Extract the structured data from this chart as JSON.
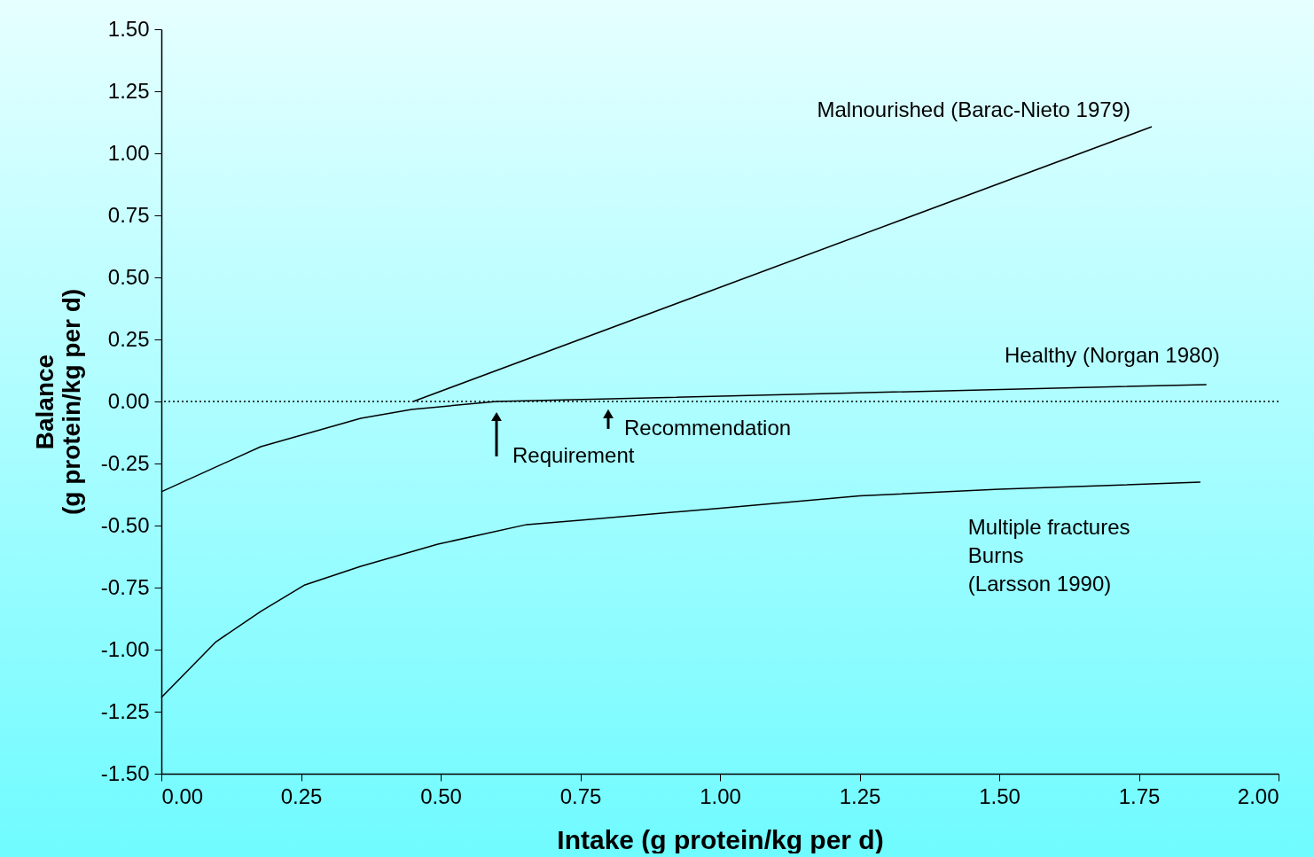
{
  "chart_data": {
    "type": "line",
    "xlabel": "Intake (g protein/kg per d)",
    "ylabel": "Balance\n(g protein/kg per d)",
    "xlim": [
      0,
      2
    ],
    "xticks": [
      {
        "value": 0,
        "label": "0.00"
      },
      {
        "value": 0.25,
        "label": "0.25"
      },
      {
        "value": 0.5,
        "label": "0.50"
      },
      {
        "value": 0.75,
        "label": "0.75"
      },
      {
        "value": 1,
        "label": "1.00"
      },
      {
        "value": 1.25,
        "label": "1.25"
      },
      {
        "value": 1.5,
        "label": "1.50"
      },
      {
        "value": 1.75,
        "label": "1.75"
      },
      {
        "value": 2,
        "label": "2.00"
      }
    ],
    "ylim": [
      -1.5,
      1.5
    ],
    "yticks": [
      {
        "value": -1.5,
        "label": "-1.50"
      },
      {
        "value": -1.25,
        "label": "-1.25"
      },
      {
        "value": -1,
        "label": "-1.00"
      },
      {
        "value": -0.75,
        "label": "-0.75"
      },
      {
        "value": -0.5,
        "label": "-0.50"
      },
      {
        "value": -0.25,
        "label": "-0.25"
      },
      {
        "value": 0,
        "label": "0.00"
      },
      {
        "value": 0.25,
        "label": "0.25"
      },
      {
        "value": 0.5,
        "label": "0.50"
      },
      {
        "value": 0.75,
        "label": "0.75"
      },
      {
        "value": 1,
        "label": "1.00"
      },
      {
        "value": 1.25,
        "label": "1.25"
      },
      {
        "value": 1.5,
        "label": "1.50"
      }
    ],
    "grid": false,
    "legend": false,
    "marker": "none",
    "line_style": "solid",
    "series": [
      {
        "name": "Malnourished (Barac-Nieto 1979)",
        "color": "#000000",
        "x": [
          0.451,
          1.773
        ],
        "values": [
          0,
          1.107
        ]
      },
      {
        "name": "Healthy (Norgan 1980)",
        "color": "#000000",
        "x": [
          0,
          0.178,
          0.357,
          0.448,
          0.6,
          1.871
        ],
        "values": [
          -0.364,
          -0.182,
          -0.068,
          -0.032,
          0,
          0.068
        ]
      },
      {
        "name": "Multiple fractures\nBurns\n(Larsson 1990)",
        "color": "#000000",
        "x": [
          0,
          0.098,
          0.178,
          0.257,
          0.357,
          0.495,
          0.654,
          0.75,
          1,
          1.25,
          1.5,
          1.86
        ],
        "values": [
          -1.193,
          -0.968,
          -0.846,
          -0.739,
          -0.664,
          -0.575,
          -0.496,
          -0.479,
          -0.43,
          -0.38,
          -0.354,
          -0.325
        ]
      }
    ],
    "ref_lines": [
      {
        "axis": "y",
        "value": 0,
        "line_style": "dotted",
        "color": "#000000"
      }
    ],
    "annotations": [
      {
        "text": "Requirement",
        "x": 0.6,
        "y": 0
      },
      {
        "text": "Recommendation",
        "x": 0.8,
        "y": 0.011
      }
    ]
  }
}
